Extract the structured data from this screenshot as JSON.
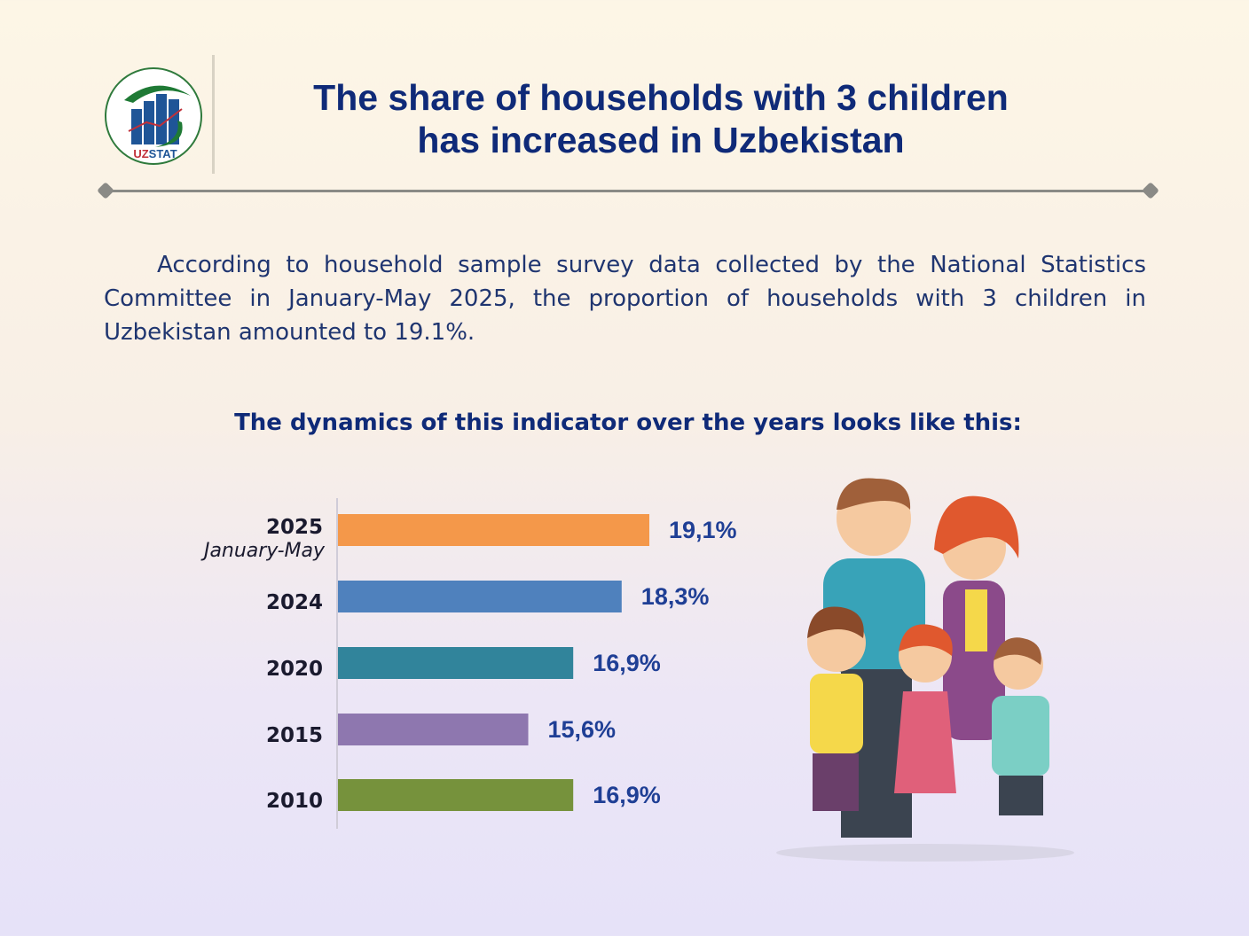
{
  "logo": {
    "text": "UZSTAT"
  },
  "header": {
    "title_line1": "The share of households with 3 children",
    "title_line2": "has increased in Uzbekistan"
  },
  "intro": "According to household sample survey data collected by the National Statistics Committee in January-May 2025, the proportion of households with 3 children in Uzbekistan amounted to 19.1%.",
  "subtitle": "The dynamics of this indicator over the years looks like this:",
  "chart_data": {
    "type": "bar",
    "orientation": "horizontal",
    "title": "The dynamics of this indicator over the years looks like this:",
    "categories": [
      "2025",
      "2024",
      "2020",
      "2015",
      "2010"
    ],
    "category_sublabels": [
      "January-May",
      "",
      "",
      "",
      ""
    ],
    "values": [
      19.1,
      18.3,
      16.9,
      15.6,
      16.9
    ],
    "value_labels": [
      "19,1%",
      "18,3%",
      "16,9%",
      "15,6%",
      "16,9%"
    ],
    "colors": [
      "#F4984A",
      "#4F81BD",
      "#31849B",
      "#8E77AF",
      "#76923C"
    ],
    "xlabel": "",
    "ylabel": "",
    "xlim": [
      10.1,
      20
    ],
    "grid": false,
    "unit": "%"
  }
}
